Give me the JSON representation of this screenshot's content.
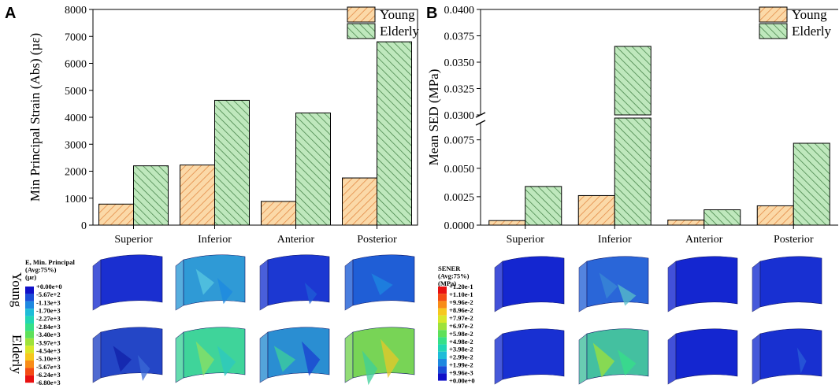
{
  "colors": {
    "young_fill": "#fbd9a8",
    "young_hatch": "#e0813a",
    "elderly_fill": "#bfe8bd",
    "elderly_hatch": "#3a7a3e",
    "axis": "#000000"
  },
  "panels": {
    "a_letter": "A",
    "b_letter": "B"
  },
  "chart_data": [
    {
      "type": "bar",
      "panel": "A",
      "title": "",
      "ylabel": "Min Principal Strain (Abs)  (µε)",
      "xlabel": "",
      "categories": [
        "Superior",
        "Inferior",
        "Anterior",
        "Posterior"
      ],
      "series": [
        {
          "name": "Young",
          "values": [
            780,
            2230,
            880,
            1750
          ]
        },
        {
          "name": "Elderly",
          "values": [
            2200,
            4630,
            4160,
            6800
          ]
        }
      ],
      "ylim": [
        0,
        8000
      ],
      "yticks": [
        0,
        1000,
        2000,
        3000,
        4000,
        5000,
        6000,
        7000,
        8000
      ],
      "ytick_labels": [
        "0",
        "1000",
        "2000",
        "3000",
        "4000",
        "5000",
        "6000",
        "7000",
        "8000"
      ],
      "legend": [
        "Young",
        "Elderly"
      ],
      "legend_position": "top-right",
      "grid": false
    },
    {
      "type": "bar",
      "panel": "B",
      "title": "",
      "ylabel": "Mean SED  (MPa)",
      "xlabel": "",
      "categories": [
        "Superior",
        "Inferior",
        "Anterior",
        "Posterior"
      ],
      "series": [
        {
          "name": "Young",
          "values": [
            0.0004,
            0.0026,
            0.00045,
            0.0017
          ]
        },
        {
          "name": "Elderly",
          "values": [
            0.0034,
            0.0365,
            0.00135,
            0.0072
          ]
        }
      ],
      "axis_break": {
        "lower": [
          0,
          0.009
        ],
        "upper": [
          0.03,
          0.04
        ]
      },
      "yticks_lower": [
        0.0,
        0.0025,
        0.005,
        0.0075
      ],
      "ytick_labels_lower": [
        "0.0000",
        "0.0025",
        "0.0050",
        "0.0075"
      ],
      "yticks_upper": [
        0.03,
        0.0325,
        0.035,
        0.0375,
        0.04
      ],
      "ytick_labels_upper": [
        "0.0300",
        "0.0325",
        "0.0350",
        "0.0375",
        "0.0400"
      ],
      "legend": [
        "Young",
        "Elderly"
      ],
      "legend_position": "top-right",
      "grid": false
    }
  ],
  "contour_panels": {
    "row_labels": [
      "Young",
      "Elderly"
    ],
    "strain": {
      "title_lines": [
        "E, Min. Principal",
        "(Avg:75%)",
        "(µε)"
      ],
      "legend_labels": [
        "+0.00e+0",
        "-5.67e+2",
        "-1.13e+3",
        "-1.70e+3",
        "-2.27e+3",
        "-2.84e+3",
        "-3.40e+3",
        "-3.97e+3",
        "-4.54e+3",
        "-5.10e+3",
        "-5.67e+3",
        "-6.24e+3",
        "-6.80e+3"
      ],
      "legend_colors": [
        "#1010c8",
        "#1a4ed8",
        "#1e88e0",
        "#1ebcd8",
        "#22d6b4",
        "#36e088",
        "#5ee05a",
        "#9ee23a",
        "#d8e82a",
        "#f6c81e",
        "#f88c18",
        "#f44c14",
        "#e81010"
      ],
      "young_colors": [
        "#1a2fd0",
        "#2f9ad6",
        "#1c38d2",
        "#1f5ed6"
      ],
      "elderly_colors": [
        "#2446c6",
        "#3fd49a",
        "#2a8ed2",
        "#78d456"
      ]
    },
    "sed": {
      "title_lines": [
        "SENER",
        "(Avg:75%)",
        "(MPa)"
      ],
      "legend_labels": [
        "+1.20e-1",
        "+1.10e-1",
        "+9.96e-2",
        "+8.96e-2",
        "+7.97e-2",
        "+6.97e-2",
        "+5.98e-2",
        "+4.98e-2",
        "+3.98e-2",
        "+2.99e-2",
        "+1.99e-2",
        "+9.96e-3",
        "+0.00e+0"
      ],
      "legend_colors": [
        "#e81010",
        "#f44c14",
        "#f88c18",
        "#f6c81e",
        "#d8e82a",
        "#9ee23a",
        "#5ee05a",
        "#36e088",
        "#22d6b4",
        "#1ebcd8",
        "#1e88e0",
        "#1a4ed8",
        "#1010c8"
      ],
      "young_colors": [
        "#1426d0",
        "#2a66d8",
        "#1426d0",
        "#1830d2"
      ],
      "elderly_colors": [
        "#1830d2",
        "#44c0a0",
        "#1426d0",
        "#1830d0"
      ]
    }
  }
}
